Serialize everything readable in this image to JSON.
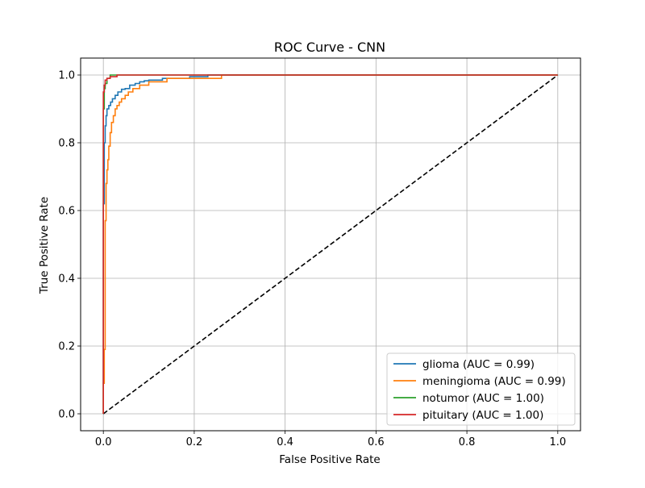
{
  "chart_data": {
    "type": "line",
    "title": "ROC Curve - CNN",
    "xlabel": "False Positive Rate",
    "ylabel": "True Positive Rate",
    "xlim": [
      -0.05,
      1.05
    ],
    "ylim": [
      -0.05,
      1.05
    ],
    "xticks": [
      0.0,
      0.2,
      0.4,
      0.6,
      0.8,
      1.0
    ],
    "yticks": [
      0.0,
      0.2,
      0.4,
      0.6,
      0.8,
      1.0
    ],
    "xtick_labels": [
      "0.0",
      "0.2",
      "0.4",
      "0.6",
      "0.8",
      "1.0"
    ],
    "ytick_labels": [
      "0.0",
      "0.2",
      "0.4",
      "0.6",
      "0.8",
      "1.0"
    ],
    "grid": true,
    "legend_position": "lower-right",
    "series": [
      {
        "name": "glioma (AUC = 0.99)",
        "color": "#1f77b4",
        "x": [
          0.0,
          0.0,
          0.002,
          0.002,
          0.004,
          0.004,
          0.006,
          0.006,
          0.008,
          0.008,
          0.012,
          0.012,
          0.016,
          0.016,
          0.02,
          0.02,
          0.026,
          0.026,
          0.032,
          0.032,
          0.04,
          0.04,
          0.048,
          0.048,
          0.058,
          0.058,
          0.07,
          0.07,
          0.08,
          0.08,
          0.09,
          0.09,
          0.1,
          0.1,
          0.13,
          0.13,
          0.19,
          0.19,
          0.23,
          0.23,
          1.0
        ],
        "y": [
          0.0,
          0.62,
          0.62,
          0.8,
          0.8,
          0.85,
          0.85,
          0.88,
          0.88,
          0.9,
          0.9,
          0.91,
          0.91,
          0.92,
          0.92,
          0.93,
          0.93,
          0.94,
          0.94,
          0.95,
          0.95,
          0.958,
          0.958,
          0.96,
          0.96,
          0.97,
          0.97,
          0.975,
          0.975,
          0.98,
          0.98,
          0.983,
          0.983,
          0.985,
          0.985,
          0.99,
          0.99,
          0.995,
          0.995,
          1.0,
          1.0
        ]
      },
      {
        "name": "meningioma (AUC = 0.99)",
        "color": "#ff7f0e",
        "x": [
          0.0,
          0.0,
          0.002,
          0.002,
          0.004,
          0.004,
          0.006,
          0.006,
          0.008,
          0.008,
          0.01,
          0.01,
          0.012,
          0.012,
          0.015,
          0.015,
          0.018,
          0.018,
          0.022,
          0.022,
          0.026,
          0.026,
          0.03,
          0.03,
          0.035,
          0.035,
          0.04,
          0.04,
          0.048,
          0.048,
          0.055,
          0.055,
          0.065,
          0.065,
          0.08,
          0.08,
          0.1,
          0.1,
          0.14,
          0.14,
          0.26,
          0.26,
          1.0
        ],
        "y": [
          0.0,
          0.09,
          0.09,
          0.19,
          0.19,
          0.57,
          0.57,
          0.68,
          0.68,
          0.72,
          0.72,
          0.75,
          0.75,
          0.79,
          0.79,
          0.83,
          0.83,
          0.86,
          0.86,
          0.88,
          0.88,
          0.9,
          0.9,
          0.91,
          0.91,
          0.92,
          0.92,
          0.93,
          0.93,
          0.94,
          0.94,
          0.95,
          0.95,
          0.96,
          0.96,
          0.97,
          0.97,
          0.98,
          0.98,
          0.99,
          0.99,
          1.0,
          1.0
        ]
      },
      {
        "name": "notumor (AUC = 1.00)",
        "color": "#2ca02c",
        "x": [
          0.0,
          0.0,
          0.002,
          0.002,
          0.004,
          0.004,
          0.008,
          0.008,
          0.015,
          0.015,
          1.0
        ],
        "y": [
          0.0,
          0.9,
          0.9,
          0.96,
          0.96,
          0.975,
          0.975,
          0.99,
          0.99,
          1.0,
          1.0
        ]
      },
      {
        "name": "pituitary (AUC = 1.00)",
        "color": "#d62728",
        "x": [
          0.0,
          0.0,
          0.002,
          0.002,
          0.004,
          0.004,
          0.008,
          0.008,
          0.015,
          0.015,
          0.03,
          0.03,
          1.0
        ],
        "y": [
          0.0,
          0.95,
          0.95,
          0.97,
          0.97,
          0.985,
          0.985,
          0.99,
          0.99,
          0.995,
          0.995,
          1.0,
          1.0
        ]
      }
    ],
    "reference_line": {
      "x": [
        0.0,
        1.0
      ],
      "y": [
        0.0,
        1.0
      ],
      "color": "#000000",
      "style": "dashed"
    }
  }
}
